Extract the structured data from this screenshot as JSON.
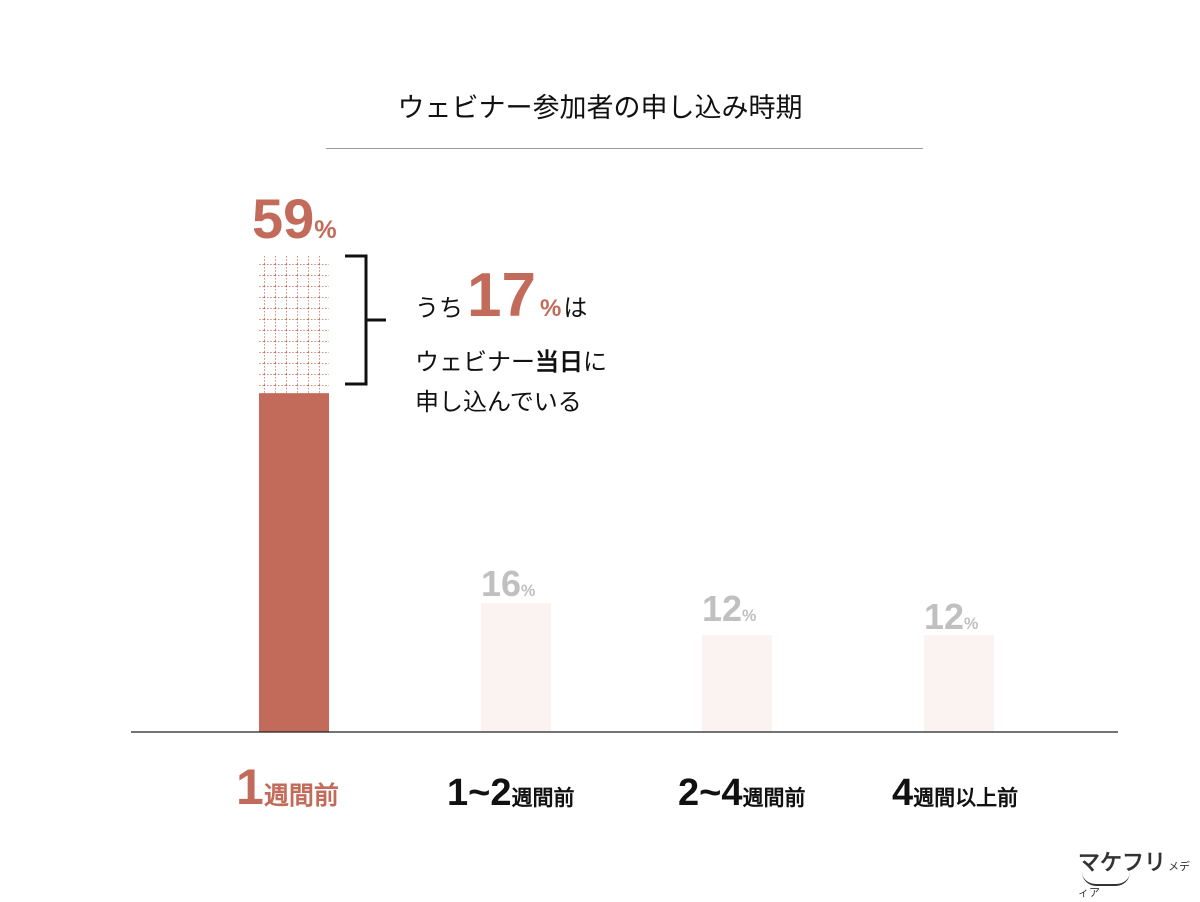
{
  "title": "ウェビナー参加者の申し込み時期",
  "chart_data": {
    "type": "bar",
    "title": "ウェビナー参加者の申し込み時期",
    "categories": [
      "1週間前",
      "1~2週間前",
      "2~4週間前",
      "4週間以上前"
    ],
    "category_labels": [
      {
        "big": "1",
        "small": "週間前"
      },
      {
        "big": "1~2",
        "small": "週間前"
      },
      {
        "big": "2~4",
        "small": "週間前"
      },
      {
        "big": "4",
        "small": "週間以上前"
      }
    ],
    "values": [
      59,
      16,
      12,
      12
    ],
    "value_labels": [
      "59",
      "16",
      "12",
      "12"
    ],
    "unit": "%",
    "highlight_index": 0,
    "sub_segment": {
      "category": "1週間前",
      "value": 17,
      "pattern": "dotted-grid"
    },
    "ylim": [
      0,
      59
    ],
    "colors": {
      "highlight": "#c36b5b",
      "muted_bar": "#fbf3f2",
      "muted_label": "#c0c0c0",
      "baseline": "#222222"
    }
  },
  "annotation": {
    "prefix": "うち",
    "value": "17",
    "unit": "%",
    "suffix": "は",
    "line2_a": "ウェビナー",
    "line2_b": "当日",
    "line2_c": "に",
    "line3": "申し込んでいる"
  },
  "logo": {
    "name": "マケフリ",
    "sub": "メディア"
  }
}
